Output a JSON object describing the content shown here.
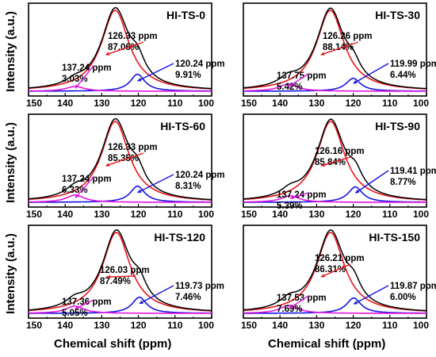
{
  "common": {
    "ylabel": "Intensity (a.u.)",
    "xlabel": "Chemical shift (ppm)",
    "xticks": [
      150,
      140,
      130,
      120,
      110,
      100
    ],
    "xlim": [
      150,
      100
    ],
    "colors": {
      "total": "#000000",
      "main": "#e8161c",
      "low": "#1515e0",
      "high": "#e016e0"
    }
  },
  "chart_data": [
    {
      "type": "line",
      "title": "HI-TS-0",
      "peaks": [
        {
          "ppm": 126.33,
          "ppm_label": "126.33 ppm",
          "pct_label": "87.06%",
          "height": 1.0,
          "width": 4.6,
          "color": "main"
        },
        {
          "ppm": 120.24,
          "ppm_label": "120.24 ppm",
          "pct_label": "9.91%",
          "height": 0.21,
          "width": 2.4,
          "color": "low"
        },
        {
          "ppm": 137.24,
          "ppm_label": "137.24 ppm",
          "pct_label": "3.03%",
          "height": 0.06,
          "width": 3.0,
          "color": "high"
        }
      ]
    },
    {
      "type": "line",
      "title": "HI-TS-30",
      "peaks": [
        {
          "ppm": 126.26,
          "ppm_label": "126.26 ppm",
          "pct_label": "88.14%",
          "height": 1.0,
          "width": 4.6,
          "color": "main"
        },
        {
          "ppm": 119.99,
          "ppm_label": "119.99 ppm",
          "pct_label": "6.44%",
          "height": 0.16,
          "width": 2.4,
          "color": "low"
        },
        {
          "ppm": 137.75,
          "ppm_label": "137.75 ppm",
          "pct_label": "5.42%",
          "height": 0.09,
          "width": 3.0,
          "color": "high"
        }
      ]
    },
    {
      "type": "line",
      "title": "HI-TS-60",
      "peaks": [
        {
          "ppm": 126.33,
          "ppm_label": "126.33 ppm",
          "pct_label": "85.35%",
          "height": 1.0,
          "width": 4.6,
          "color": "main"
        },
        {
          "ppm": 120.24,
          "ppm_label": "120.24 ppm",
          "pct_label": "8.31%",
          "height": 0.2,
          "width": 2.4,
          "color": "low"
        },
        {
          "ppm": 137.24,
          "ppm_label": "137.24 ppm",
          "pct_label": "6.33%",
          "height": 0.09,
          "width": 3.0,
          "color": "high"
        }
      ]
    },
    {
      "type": "line",
      "title": "HI-TS-90",
      "peaks": [
        {
          "ppm": 126.16,
          "ppm_label": "126.16 ppm",
          "pct_label": "85.84%",
          "height": 1.0,
          "width": 4.6,
          "color": "main"
        },
        {
          "ppm": 119.41,
          "ppm_label": "119.41 ppm",
          "pct_label": "8.77%",
          "height": 0.19,
          "width": 2.4,
          "color": "low"
        },
        {
          "ppm": 137.24,
          "ppm_label": "137.24 ppm",
          "pct_label": "5.39%",
          "height": 0.08,
          "width": 3.0,
          "color": "high"
        }
      ]
    },
    {
      "type": "line",
      "title": "HI-TS-120",
      "peaks": [
        {
          "ppm": 126.03,
          "ppm_label": "126.03 ppm",
          "pct_label": "87.49%",
          "height": 1.0,
          "width": 4.6,
          "color": "main"
        },
        {
          "ppm": 119.73,
          "ppm_label": "119.73 ppm",
          "pct_label": "7.46%",
          "height": 0.2,
          "width": 2.4,
          "color": "low"
        },
        {
          "ppm": 137.36,
          "ppm_label": "137.36 ppm",
          "pct_label": "5.05%",
          "height": 0.09,
          "width": 3.0,
          "color": "high"
        }
      ]
    },
    {
      "type": "line",
      "title": "HI-TS-150",
      "peaks": [
        {
          "ppm": 126.21,
          "ppm_label": "126.21 ppm",
          "pct_label": "86.31%",
          "height": 1.0,
          "width": 4.6,
          "color": "main"
        },
        {
          "ppm": 119.87,
          "ppm_label": "119.87 ppm",
          "pct_label": "6.00%",
          "height": 0.19,
          "width": 2.4,
          "color": "low"
        },
        {
          "ppm": 137.53,
          "ppm_label": "137.53 ppm",
          "pct_label": "7.69%",
          "height": 0.1,
          "width": 3.0,
          "color": "high"
        }
      ]
    }
  ]
}
